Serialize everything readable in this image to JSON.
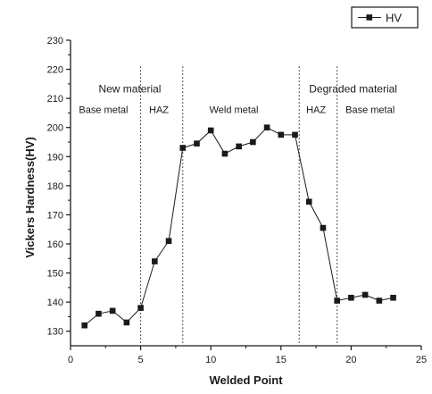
{
  "chart_data": {
    "type": "line",
    "title": "",
    "xlabel": "Welded Point",
    "ylabel": "Vickers Hardness(HV)",
    "xlim": [
      0,
      25
    ],
    "ylim": [
      125,
      230
    ],
    "x_ticks": [
      0,
      5,
      10,
      15,
      20,
      25
    ],
    "y_ticks": [
      130,
      140,
      150,
      160,
      170,
      180,
      190,
      200,
      210,
      220,
      230
    ],
    "legend": {
      "placement": "top-right",
      "label": "HV"
    },
    "series": [
      {
        "name": "HV",
        "color": "#1a1a1a",
        "marker": "square",
        "points": [
          [
            1,
            132
          ],
          [
            2,
            136
          ],
          [
            3,
            137
          ],
          [
            4,
            133
          ],
          [
            5,
            138
          ],
          [
            6,
            154
          ],
          [
            7,
            161
          ],
          [
            8,
            193
          ],
          [
            9,
            194.5
          ],
          [
            10,
            199
          ],
          [
            11,
            191
          ],
          [
            12,
            193.5
          ],
          [
            13,
            195
          ],
          [
            14,
            200
          ],
          [
            15,
            197.5
          ],
          [
            16,
            197.5
          ],
          [
            17,
            174.5
          ],
          [
            18,
            165.5
          ],
          [
            19,
            140.5
          ],
          [
            20,
            141.5
          ],
          [
            21,
            142.5
          ],
          [
            22,
            140.5
          ],
          [
            23,
            141.5
          ]
        ]
      }
    ],
    "region_dividers": [
      5,
      8,
      16.3,
      19
    ],
    "annotations": [
      {
        "text": "New material",
        "x": 2,
        "y": 212,
        "size": "big"
      },
      {
        "text": "Degraded material",
        "x": 17,
        "y": 212,
        "size": "big"
      },
      {
        "text": "Base metal",
        "x": 0.6,
        "y": 205,
        "size": "normal"
      },
      {
        "text": "HAZ",
        "x": 5.6,
        "y": 205,
        "size": "normal"
      },
      {
        "text": "Weld metal",
        "x": 9.9,
        "y": 205,
        "size": "normal"
      },
      {
        "text": "HAZ",
        "x": 16.8,
        "y": 205,
        "size": "normal"
      },
      {
        "text": "Base metal",
        "x": 19.6,
        "y": 205,
        "size": "normal"
      }
    ]
  }
}
